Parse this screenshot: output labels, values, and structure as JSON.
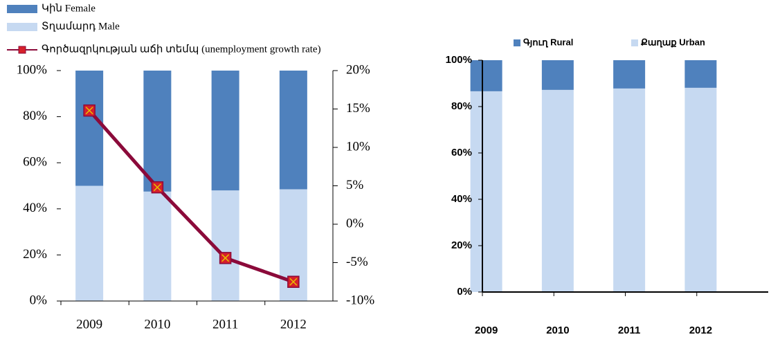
{
  "chart_data": [
    {
      "type": "bar",
      "stacked": true,
      "legend": "top-left",
      "categories": [
        "2009",
        "2010",
        "2011",
        "2012"
      ],
      "series": [
        {
          "name": "Կին Female",
          "color": "#4f81bd",
          "values": [
            50,
            52.5,
            52,
            51.5
          ]
        },
        {
          "name": "Տղամարդ Male",
          "color": "#c6d9f1",
          "values": [
            50,
            47.5,
            48,
            48.5
          ]
        },
        {
          "name": "Գործազրկության աճի տեմպ (unemployment growth rate)",
          "type": "line",
          "axis": "y2",
          "color": "#8b0a3a",
          "marker_color": "#d6202a",
          "values": [
            14.8,
            4.8,
            -4.4,
            -7.5
          ]
        }
      ],
      "ylim": [
        0,
        100
      ],
      "yticks": [
        {
          "value": 0,
          "label": "0%"
        },
        {
          "value": 20,
          "label": "20%"
        },
        {
          "value": 40,
          "label": "40%"
        },
        {
          "value": 60,
          "label": "60%"
        },
        {
          "value": 80,
          "label": "80%"
        },
        {
          "value": 100,
          "label": "100%"
        }
      ],
      "y2lim": [
        -10,
        20
      ],
      "y2ticks": [
        {
          "value": -10,
          "label": "-10%"
        },
        {
          "value": -5,
          "label": "-5%"
        },
        {
          "value": 0,
          "label": "0%"
        },
        {
          "value": 5,
          "label": "5%"
        },
        {
          "value": 10,
          "label": "10%"
        },
        {
          "value": 15,
          "label": "15%"
        },
        {
          "value": 20,
          "label": "20%"
        }
      ]
    },
    {
      "type": "bar",
      "stacked": true,
      "legend": "top",
      "categories": [
        "2009",
        "2010",
        "2011",
        "2012"
      ],
      "series": [
        {
          "name": "Գյուղ Rural",
          "color": "#4f81bd",
          "values": [
            13.4,
            12.8,
            12.2,
            11.9
          ]
        },
        {
          "name": "Քաղաք Urban",
          "color": "#c6d9f1",
          "values": [
            86.6,
            87.2,
            87.8,
            88.1
          ]
        }
      ],
      "ylim": [
        0,
        100
      ],
      "yticks": [
        {
          "value": 0,
          "label": "0%"
        },
        {
          "value": 20,
          "label": "20%"
        },
        {
          "value": 40,
          "label": "40%"
        },
        {
          "value": 60,
          "label": "60%"
        },
        {
          "value": 80,
          "label": "80%"
        },
        {
          "value": 100,
          "label": "100%"
        }
      ]
    }
  ]
}
